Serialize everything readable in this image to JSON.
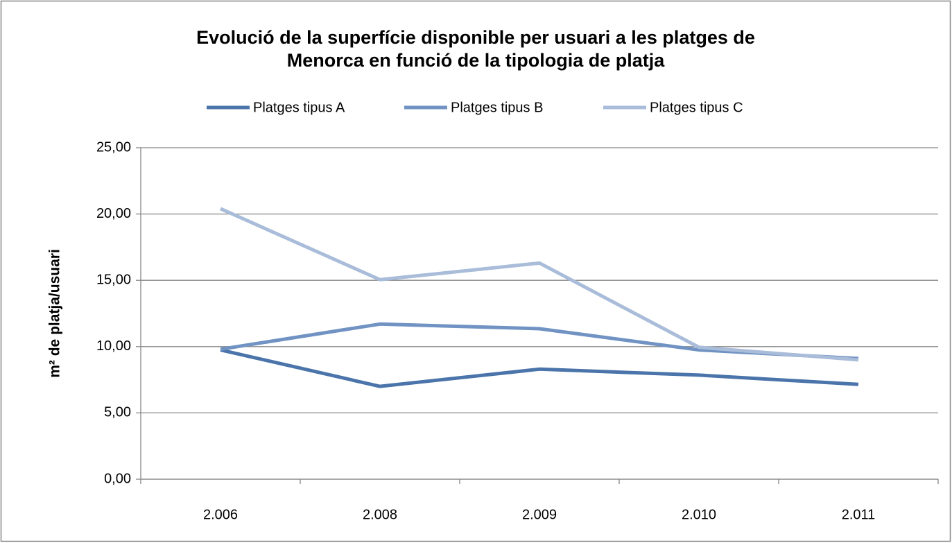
{
  "chart_data": {
    "type": "line",
    "title": [
      "Evolució de la superfície disponible per usuari a les platges de",
      "Menorca en funció de la tipologia de platja"
    ],
    "y_label": "m² de platja/usuari",
    "categories": [
      "2.006",
      "2.008",
      "2.009",
      "2.010",
      "2.011"
    ],
    "series": [
      {
        "name": "Platges tipus A",
        "color": "#4a74aa",
        "values": [
          9.75,
          7.0,
          8.3,
          7.85,
          7.15
        ]
      },
      {
        "name": "Platges tipus B",
        "color": "#7093c3",
        "values": [
          9.8,
          11.7,
          11.35,
          9.75,
          9.1
        ]
      },
      {
        "name": "Platges tipus C",
        "color": "#a9bcd9",
        "values": [
          20.4,
          15.05,
          16.3,
          9.95,
          9.0
        ]
      }
    ],
    "ylim": [
      0,
      25
    ],
    "yticks": [
      {
        "value": 0,
        "label": "0,00"
      },
      {
        "value": 5,
        "label": "5,00"
      },
      {
        "value": 10,
        "label": "10,00"
      },
      {
        "value": 15,
        "label": "15,00"
      },
      {
        "value": 20,
        "label": "20,00"
      },
      {
        "value": 25,
        "label": "25,00"
      }
    ],
    "grid": true,
    "legend": "top"
  }
}
